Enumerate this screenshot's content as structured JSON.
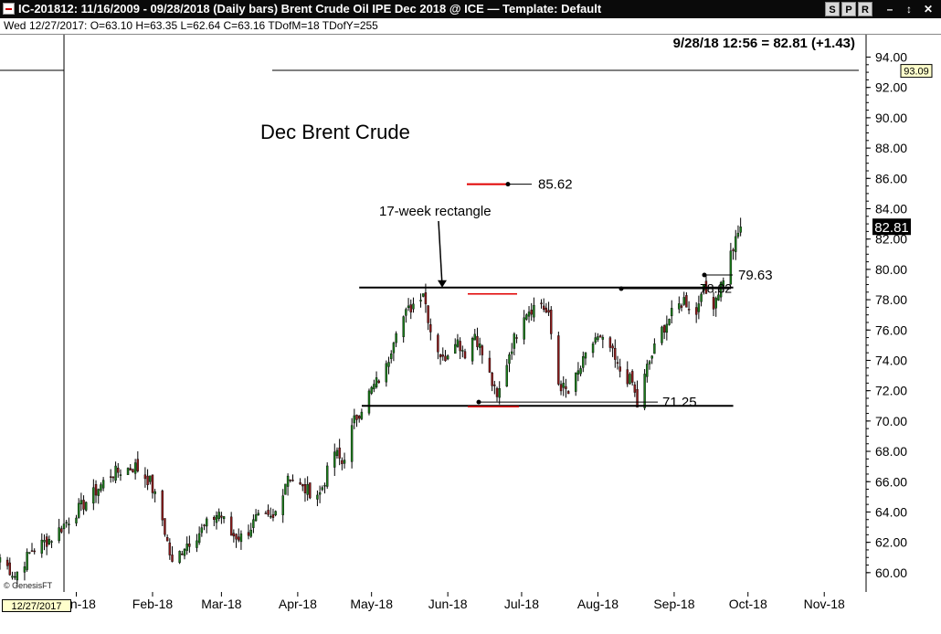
{
  "window": {
    "title": "IC-201812:  11/16/2009 - 09/28/2018  (Daily bars)   Brent Crude Oil IPE Dec 2018 @ ICE  —  Template: Default",
    "buttons": [
      "S",
      "P",
      "R"
    ],
    "controls": [
      "–",
      "↕",
      "✕"
    ]
  },
  "infobar": {
    "day": "Wed",
    "ohlc": "12/27/2017:  O=63.10  H=63.35  L=62.64  C=63.16  TDofM=18  TDofY=255"
  },
  "cursor_date": "12/27/2017",
  "copyright": "© GenesisFT",
  "colors": {
    "up": "#1a7a1a",
    "down": "#8b1a1a",
    "highlight": "#e00000",
    "line": "#000000"
  },
  "chart_data": {
    "type": "candlestick",
    "title": "Dec Brent Crude",
    "header_quote": "9/28/18 12:56 = 82.81 (+1.43)",
    "last_price": "82.81",
    "marker_price": "93.09",
    "y_range": [
      59,
      95
    ],
    "y_ticks": [
      "94.00",
      "92.00",
      "90.00",
      "88.00",
      "86.00",
      "84.00",
      "82.00",
      "80.00",
      "78.00",
      "76.00",
      "74.00",
      "72.00",
      "70.00",
      "68.00",
      "66.00",
      "64.00",
      "62.00",
      "60.00"
    ],
    "x_range": [
      "2017-12-01",
      "2018-11-18"
    ],
    "x_labels": [
      {
        "date": "2018-01-01",
        "label": "Jan-18"
      },
      {
        "date": "2018-02-01",
        "label": "Feb-18"
      },
      {
        "date": "2018-03-01",
        "label": "Mar-18"
      },
      {
        "date": "2018-04-01",
        "label": "Apr-18"
      },
      {
        "date": "2018-05-01",
        "label": "May-18"
      },
      {
        "date": "2018-06-01",
        "label": "Jun-18"
      },
      {
        "date": "2018-07-01",
        "label": "Jul-18"
      },
      {
        "date": "2018-08-01",
        "label": "Aug-18"
      },
      {
        "date": "2018-09-01",
        "label": "Sep-18"
      },
      {
        "date": "2018-10-01",
        "label": "Oct-18"
      },
      {
        "date": "2018-11-01",
        "label": "Nov-18"
      }
    ],
    "cursor_line_date": "2017-12-27",
    "series_key_points": [
      [
        "2017-12-01",
        61.0
      ],
      [
        "2017-12-07",
        59.8
      ],
      [
        "2017-12-14",
        61.5
      ],
      [
        "2017-12-22",
        62.3
      ],
      [
        "2017-12-29",
        63.5
      ],
      [
        "2018-01-08",
        65.2
      ],
      [
        "2018-01-15",
        66.5
      ],
      [
        "2018-01-25",
        67.0
      ],
      [
        "2018-01-31",
        66.0
      ],
      [
        "2018-02-05",
        63.5
      ],
      [
        "2018-02-09",
        60.5
      ],
      [
        "2018-02-14",
        61.8
      ],
      [
        "2018-02-21",
        62.8
      ],
      [
        "2018-02-28",
        64.0
      ],
      [
        "2018-03-05",
        62.5
      ],
      [
        "2018-03-10",
        62.3
      ],
      [
        "2018-03-15",
        63.5
      ],
      [
        "2018-03-22",
        63.5
      ],
      [
        "2018-03-28",
        66.5
      ],
      [
        "2018-04-03",
        65.5
      ],
      [
        "2018-04-10",
        65.2
      ],
      [
        "2018-04-16",
        68.0
      ],
      [
        "2018-04-19",
        67.2
      ],
      [
        "2018-04-24",
        70.0
      ],
      [
        "2018-04-30",
        71.8
      ],
      [
        "2018-05-07",
        73.5
      ],
      [
        "2018-05-11",
        76.2
      ],
      [
        "2018-05-17",
        77.5
      ],
      [
        "2018-05-22",
        78.6
      ],
      [
        "2018-05-25",
        76.0
      ],
      [
        "2018-05-30",
        74.0
      ],
      [
        "2018-06-04",
        75.5
      ],
      [
        "2018-06-08",
        74.5
      ],
      [
        "2018-06-12",
        75.8
      ],
      [
        "2018-06-18",
        73.0
      ],
      [
        "2018-06-21",
        71.4
      ],
      [
        "2018-06-26",
        74.5
      ],
      [
        "2018-07-02",
        77.2
      ],
      [
        "2018-07-09",
        77.8
      ],
      [
        "2018-07-12",
        76.8
      ],
      [
        "2018-07-16",
        72.5
      ],
      [
        "2018-07-20",
        71.8
      ],
      [
        "2018-07-25",
        73.5
      ],
      [
        "2018-07-31",
        75.5
      ],
      [
        "2018-08-06",
        74.8
      ],
      [
        "2018-08-09",
        73.5
      ],
      [
        "2018-08-15",
        72.5
      ],
      [
        "2018-08-17",
        71.0
      ],
      [
        "2018-08-21",
        73.5
      ],
      [
        "2018-08-27",
        76.0
      ],
      [
        "2018-08-31",
        77.0
      ],
      [
        "2018-09-05",
        78.0
      ],
      [
        "2018-09-10",
        77.0
      ],
      [
        "2018-09-12",
        78.8
      ],
      [
        "2018-09-17",
        77.8
      ],
      [
        "2018-09-20",
        79.0
      ],
      [
        "2018-09-24",
        81.0
      ],
      [
        "2018-09-26",
        81.8
      ],
      [
        "2018-09-28",
        82.81
      ]
    ],
    "rectangle": {
      "top": 78.8,
      "bottom": 71.0,
      "start": "2018-04-30",
      "end": "2018-09-25"
    },
    "annotations": [
      {
        "text": "85.62",
        "price": 85.62,
        "date": "2018-06-27",
        "kind": "level"
      },
      {
        "text": "17-week rectangle",
        "kind": "label"
      },
      {
        "text": "79.63",
        "price": 79.63,
        "date": "2018-09-15",
        "kind": "level"
      },
      {
        "text": "78.82",
        "price": 78.82,
        "date": "2018-08-01",
        "kind": "level"
      },
      {
        "text": "71.25",
        "price": 71.25,
        "date": "2018-06-20",
        "kind": "level"
      }
    ]
  }
}
